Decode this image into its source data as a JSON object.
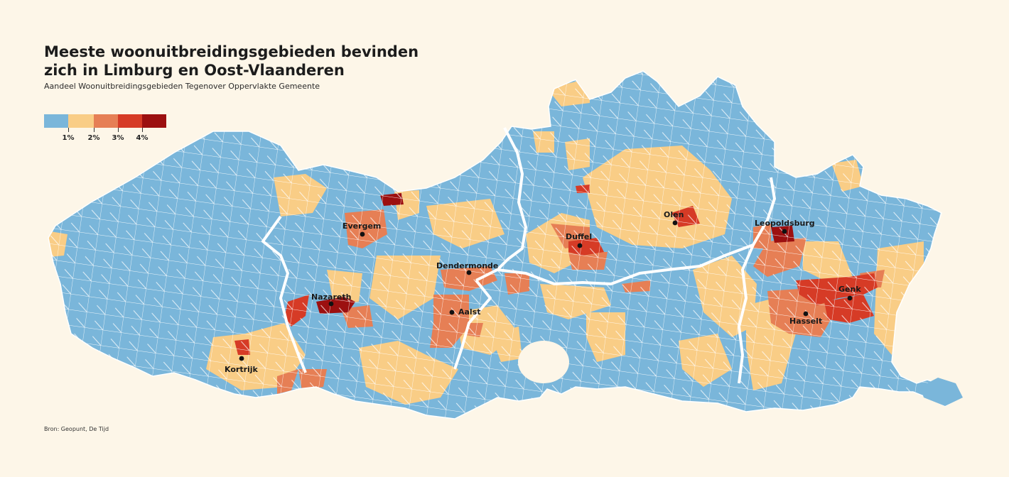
{
  "title": "Meeste woonuitbreidingsgebieden bevinden zich in Limburg en Oost-Vlaanderen",
  "subtitle": "Aandeel Woonuitbreidingsgebieden Tegenover Oppervlakte Gemeente",
  "source": "Bron: Geopunt, De Tijd",
  "legend": {
    "classes": [
      {
        "color": "#7ab6da"
      },
      {
        "color": "#f9cd86"
      },
      {
        "color": "#e67f55"
      },
      {
        "color": "#d63b26"
      },
      {
        "color": "#9c1010"
      }
    ],
    "ticks": [
      "1%",
      "2%",
      "3%",
      "4%"
    ]
  },
  "colors": {
    "background": "#fdf6e8",
    "class_1": "#7ab6da",
    "class_2": "#f9cd86",
    "class_3": "#e67f55",
    "class_4": "#d63b26",
    "class_5": "#9c1010",
    "province_borders": "#ffffff"
  },
  "cities": [
    {
      "name": "Evergem",
      "class": 3
    },
    {
      "name": "Nazareth",
      "class": 5
    },
    {
      "name": "Kortrijk",
      "class": 2
    },
    {
      "name": "Dendermonde",
      "class": 3
    },
    {
      "name": "Aalst",
      "class": 3
    },
    {
      "name": "Duffel",
      "class": 4
    },
    {
      "name": "Olen",
      "class": 4
    },
    {
      "name": "Leopoldsburg",
      "class": 5
    },
    {
      "name": "Genk",
      "class": 4
    },
    {
      "name": "Hasselt",
      "class": 3
    }
  ]
}
